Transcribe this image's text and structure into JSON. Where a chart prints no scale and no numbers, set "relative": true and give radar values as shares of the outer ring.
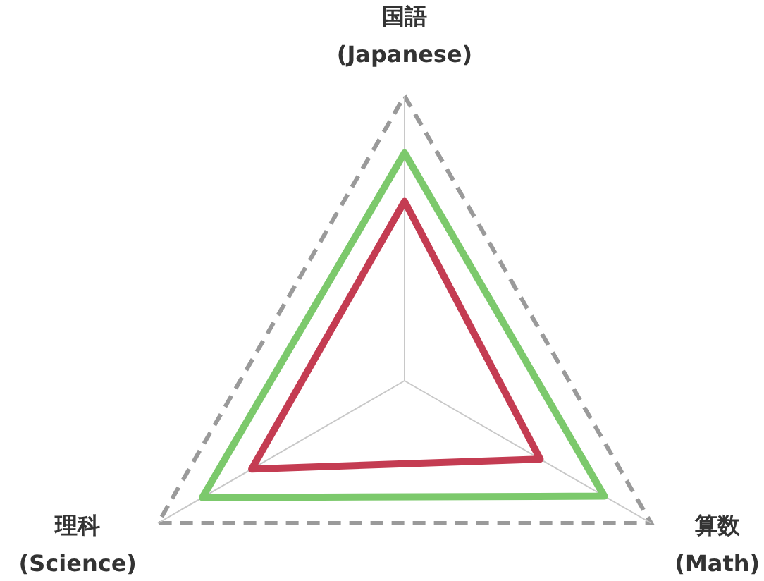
{
  "chart_data": {
    "type": "radar",
    "categories": [
      "国語\n(Japanese)",
      "算数\n(Math)",
      "理科\n(Science)"
    ],
    "relative": true,
    "grid": true,
    "legend": false,
    "marker": "none",
    "series": [
      {
        "color": "#7cc96c",
        "values": [
          0.8,
          0.81,
          0.82
        ]
      },
      {
        "color": "#c43c52",
        "values": [
          0.63,
          0.55,
          0.62
        ]
      }
    ]
  }
}
